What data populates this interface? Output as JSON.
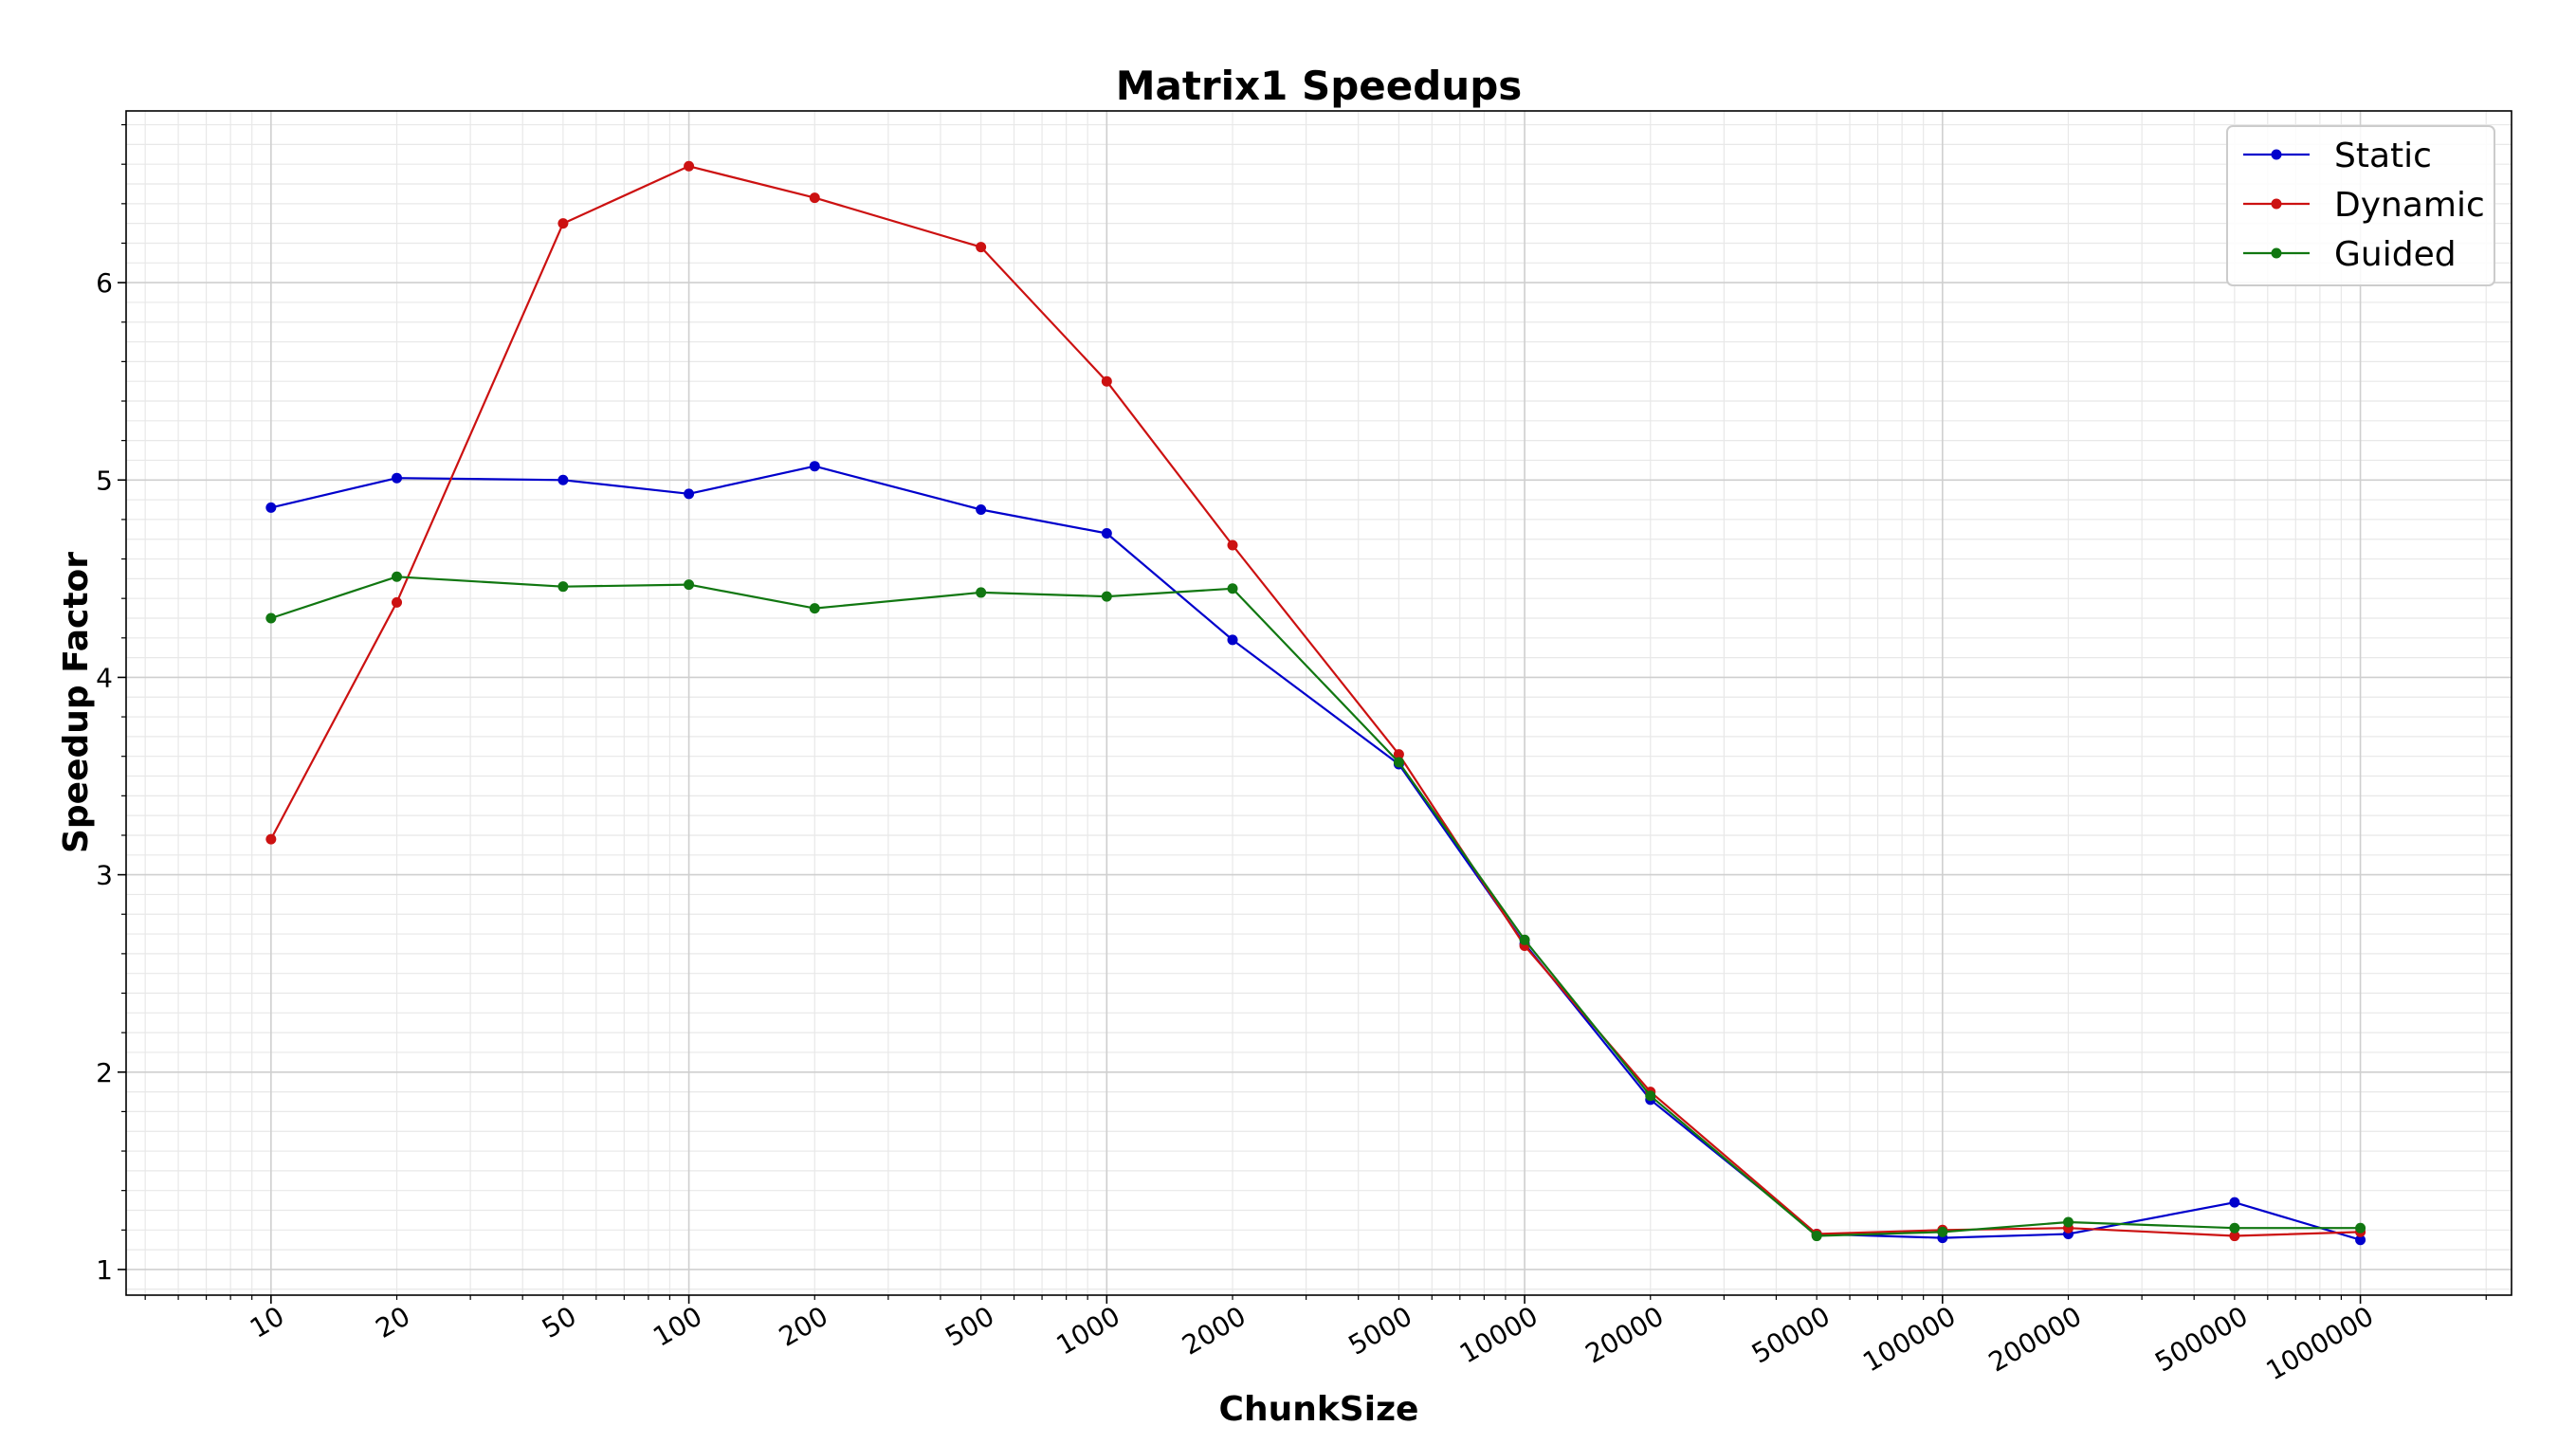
{
  "chart_data": {
    "type": "line",
    "title": "Matrix1 Speedups",
    "xlabel": "ChunkSize",
    "ylabel": "Speedup Factor",
    "xscale": "log",
    "x": [
      10,
      20,
      50,
      100,
      200,
      500,
      1000,
      2000,
      5000,
      10000,
      20000,
      50000,
      100000,
      200000,
      500000,
      1000000
    ],
    "x_tick_labels": [
      "10",
      "20",
      "50",
      "100",
      "200",
      "500",
      "1000",
      "2000",
      "5000",
      "10000",
      "20000",
      "50000",
      "100000",
      "200000",
      "500000",
      "1000000"
    ],
    "xlim": [
      4.5,
      2300000
    ],
    "ylim": [
      0.87,
      6.87
    ],
    "y_ticks": [
      1,
      2,
      3,
      4,
      5,
      6
    ],
    "y_tick_labels": [
      "1",
      "2",
      "3",
      "4",
      "5",
      "6"
    ],
    "grid": true,
    "legend_position": "top-right",
    "series": [
      {
        "name": "Static",
        "color": "#0000cc",
        "values": [
          4.86,
          5.01,
          5.0,
          4.93,
          5.07,
          4.85,
          4.73,
          4.19,
          3.56,
          2.65,
          1.86,
          1.18,
          1.16,
          1.18,
          1.34,
          1.15
        ]
      },
      {
        "name": "Dynamic",
        "color": "#cc1111",
        "values": [
          3.18,
          4.38,
          6.3,
          6.59,
          6.43,
          6.18,
          5.5,
          4.67,
          3.61,
          2.64,
          1.9,
          1.18,
          1.2,
          1.21,
          1.17,
          1.19
        ]
      },
      {
        "name": "Guided",
        "color": "#117711",
        "values": [
          4.3,
          4.51,
          4.46,
          4.47,
          4.35,
          4.43,
          4.41,
          4.45,
          3.57,
          2.67,
          1.88,
          1.17,
          1.19,
          1.24,
          1.21,
          1.21
        ]
      }
    ]
  }
}
